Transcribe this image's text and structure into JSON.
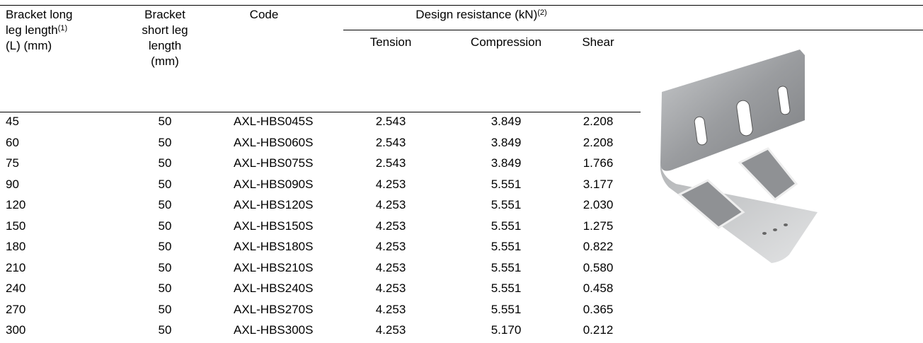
{
  "header": {
    "long_leg": {
      "line1": "Bracket long",
      "line2": "leg length",
      "sup": "(1)",
      "line3": "(L) (mm)"
    },
    "short_leg": {
      "line1": "Bracket",
      "line2": "short leg",
      "line3": "length",
      "line4": "(mm)"
    },
    "code": "Code",
    "design": {
      "text": "Design resistance (kN)",
      "sup": "(2)"
    },
    "tension": "Tension",
    "compression": "Compression",
    "shear": "Shear"
  },
  "table": {
    "rows": [
      [
        "45",
        "50",
        "AXL-HBS045S",
        "2.543",
        "3.849",
        "2.208"
      ],
      [
        "60",
        "50",
        "AXL-HBS060S",
        "2.543",
        "3.849",
        "2.208"
      ],
      [
        "75",
        "50",
        "AXL-HBS075S",
        "2.543",
        "3.849",
        "1.766"
      ],
      [
        "90",
        "50",
        "AXL-HBS090S",
        "4.253",
        "5.551",
        "3.177"
      ],
      [
        "120",
        "50",
        "AXL-HBS120S",
        "4.253",
        "5.551",
        "2.030"
      ],
      [
        "150",
        "50",
        "AXL-HBS150S",
        "4.253",
        "5.551",
        "1.275"
      ],
      [
        "180",
        "50",
        "AXL-HBS180S",
        "4.253",
        "5.551",
        "0.822"
      ],
      [
        "210",
        "50",
        "AXL-HBS210S",
        "4.253",
        "5.551",
        "0.580"
      ],
      [
        "240",
        "50",
        "AXL-HBS240S",
        "4.253",
        "5.551",
        "0.458"
      ],
      [
        "270",
        "50",
        "AXL-HBS270S",
        "4.253",
        "5.551",
        "0.365"
      ],
      [
        "300",
        "50",
        "AXL-HBS300S",
        "4.253",
        "5.170",
        "0.212"
      ]
    ]
  }
}
